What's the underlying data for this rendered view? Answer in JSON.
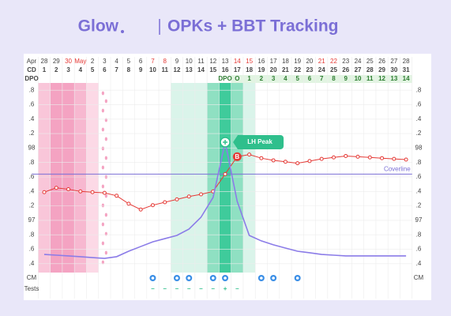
{
  "chart_data": {
    "type": "line",
    "brand": "Glow",
    "title": "OPKs + BBT Tracking",
    "month": "Apr",
    "cd_label": "CD",
    "dpo_label": "DPO",
    "cm_label": "CM",
    "tests_label": "Tests",
    "categories": [
      "28",
      "29",
      "30",
      "May",
      "2",
      "3",
      "4",
      "5",
      "6",
      "7",
      "8",
      "9",
      "10",
      "11",
      "12",
      "13",
      "14",
      "15",
      "16",
      "17",
      "18",
      "19",
      "20",
      "21",
      "22",
      "23",
      "24",
      "25",
      "26",
      "27",
      "28"
    ],
    "date_colors": [
      "#444",
      "#444",
      "#e53935",
      "#e53935",
      "#444",
      "#444",
      "#444",
      "#444",
      "#444",
      "#e53935",
      "#e53935",
      "#444",
      "#444",
      "#444",
      "#444",
      "#444",
      "#e53935",
      "#e53935",
      "#444",
      "#444",
      "#444",
      "#444",
      "#444",
      "#e53935",
      "#e53935",
      "#444",
      "#444",
      "#444",
      "#444",
      "#444",
      "#444"
    ],
    "cd": [
      1,
      2,
      3,
      4,
      5,
      6,
      7,
      8,
      9,
      10,
      11,
      12,
      13,
      14,
      15,
      16,
      17,
      18,
      19,
      20,
      21,
      22,
      23,
      24,
      25,
      26,
      27,
      28,
      29,
      30,
      31
    ],
    "dpo": [
      null,
      null,
      null,
      null,
      null,
      null,
      null,
      null,
      null,
      null,
      null,
      null,
      null,
      null,
      null,
      "DPO",
      "O",
      "1",
      "2",
      "3",
      "4",
      "5",
      "6",
      "7",
      "8",
      "9",
      "10",
      "11",
      "12",
      "13",
      "14"
    ],
    "dpo_color": "#e2f4e2",
    "day_shading": [
      "#f9c6d9",
      "#f4a3c2",
      "#f4a3c2",
      "#f7b8d0",
      "#fcd9e6",
      null,
      null,
      null,
      null,
      null,
      null,
      "#daf4ea",
      "#daf4ea",
      "#daf4ea",
      "#8fe0c2",
      "#3fcb9b",
      "#8fe0c2",
      "#daf4ea",
      null,
      null,
      null,
      null,
      null,
      null,
      null,
      null,
      null,
      null,
      null,
      null,
      null
    ],
    "tests": [
      null,
      null,
      null,
      null,
      null,
      null,
      null,
      null,
      null,
      "–",
      "–",
      "–",
      "–",
      "–",
      "–",
      "+",
      "–",
      null,
      null,
      null,
      null,
      null,
      null,
      null,
      null,
      null,
      null,
      null,
      null,
      null,
      null
    ],
    "tests_color": "#2fbf8c",
    "ylim": [
      96.3,
      98.9
    ],
    "yticks": [
      {
        "value": 98.8,
        "label": ".8"
      },
      {
        "value": 98.6,
        "label": ".6"
      },
      {
        "value": 98.4,
        "label": ".4"
      },
      {
        "value": 98.2,
        "label": ".2"
      },
      98,
      {
        "value": 97.8,
        "label": ".8"
      },
      {
        "value": 97.6,
        "label": ".6"
      },
      {
        "value": 97.4,
        "label": ".4"
      },
      {
        "value": 97.2,
        "label": ".2"
      },
      97,
      {
        "value": 96.8,
        "label": ".8"
      },
      {
        "value": 96.6,
        "label": ".6"
      },
      {
        "value": 96.4,
        "label": ".4"
      }
    ],
    "y2lim": [
      0,
      100
    ],
    "grid": true,
    "coverline": 97.64,
    "coverline_label": "Coverline",
    "coverline_color": "#7b6fd6",
    "lh_peak_label": "LH Peak",
    "ovulation_label": "B",
    "series": [
      {
        "name": "BBT",
        "color": "#e53935",
        "values": [
          97.39,
          97.45,
          97.43,
          97.4,
          97.39,
          97.38,
          97.34,
          97.23,
          97.15,
          97.21,
          97.25,
          97.29,
          97.33,
          97.36,
          97.4,
          97.64,
          97.88,
          97.91,
          97.86,
          97.83,
          97.81,
          97.79,
          97.82,
          97.85,
          97.87,
          97.89,
          97.88,
          97.87,
          97.86,
          97.85,
          97.84
        ]
      },
      {
        "name": "LH",
        "color": "#8b7ce8",
        "axis": "y2",
        "values": [
          8.8,
          8.4,
          8.0,
          7.6,
          7.1,
          6.7,
          7.6,
          10.5,
          13.0,
          15.5,
          17.2,
          18.9,
          22.3,
          28.6,
          39.1,
          68.5,
          37.0,
          18.9,
          16.0,
          13.9,
          12.2,
          10.5,
          9.7,
          8.8,
          8.4,
          8.0,
          8.0,
          8.0,
          8.0,
          8.0,
          8.0
        ]
      }
    ]
  }
}
